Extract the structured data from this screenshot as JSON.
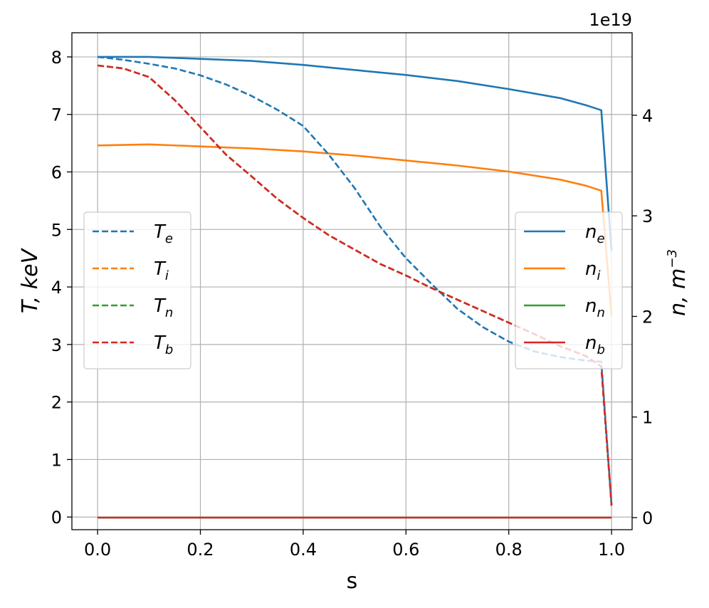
{
  "chart_data": {
    "type": "line",
    "xlabel": "s",
    "ylabel_left": {
      "base": "T, keV"
    },
    "ylabel_right": {
      "base": "n, m",
      "sup": "−3"
    },
    "right_axis_offset": "1e19",
    "xlim": [
      -0.05,
      1.04
    ],
    "ylim_left": [
      -0.22,
      8.42
    ],
    "ylim_right": [
      -0.12,
      4.82
    ],
    "x_ticks": [
      "0.0",
      "0.2",
      "0.4",
      "0.6",
      "0.8",
      "1.0"
    ],
    "x_tick_values": [
      0,
      0.2,
      0.4,
      0.6,
      0.8,
      1.0
    ],
    "y_left_ticks": [
      "0",
      "1",
      "2",
      "3",
      "4",
      "5",
      "6",
      "7",
      "8"
    ],
    "y_left_tick_values": [
      0,
      1,
      2,
      3,
      4,
      5,
      6,
      7,
      8
    ],
    "y_right_ticks": [
      "0",
      "1",
      "2",
      "3",
      "4"
    ],
    "y_right_tick_values": [
      0,
      1,
      2,
      3,
      4
    ],
    "grid": true,
    "legend_left": {
      "placement": "center-left"
    },
    "legend_right": {
      "placement": "center-right"
    },
    "series_left": [
      {
        "name": "T",
        "sub": "e",
        "color": "#1f77b4",
        "dash": true,
        "x": [
          0,
          0.05,
          0.1,
          0.15,
          0.2,
          0.25,
          0.3,
          0.35,
          0.4,
          0.45,
          0.5,
          0.55,
          0.6,
          0.65,
          0.7,
          0.75,
          0.8,
          0.85,
          0.9,
          0.95,
          0.98,
          1.0
        ],
        "y": [
          8.0,
          7.95,
          7.88,
          7.8,
          7.68,
          7.52,
          7.32,
          7.08,
          6.8,
          6.3,
          5.72,
          5.05,
          4.5,
          4.05,
          3.62,
          3.3,
          3.05,
          2.88,
          2.78,
          2.72,
          2.7,
          0.2
        ]
      },
      {
        "name": "T",
        "sub": "i",
        "color": "#ff7f0e",
        "dash": true,
        "x": [
          0,
          0.05,
          0.1,
          0.15,
          0.2,
          0.25,
          0.3,
          0.35,
          0.4,
          0.45,
          0.5,
          0.55,
          0.6,
          0.65,
          0.7,
          0.75,
          0.8,
          0.85,
          0.9,
          0.95,
          0.98,
          1.0
        ],
        "y": [
          7.85,
          7.8,
          7.65,
          7.25,
          6.78,
          6.3,
          5.92,
          5.53,
          5.2,
          4.9,
          4.65,
          4.4,
          4.2,
          3.98,
          3.78,
          3.58,
          3.38,
          3.18,
          2.97,
          2.8,
          2.62,
          0.2
        ]
      },
      {
        "name": "T",
        "sub": "n",
        "color": "#2ca02c",
        "dash": true,
        "x": [
          0,
          0.05,
          0.1,
          0.15,
          0.2,
          0.25,
          0.3,
          0.35,
          0.4,
          0.45,
          0.5,
          0.55,
          0.6,
          0.65,
          0.7,
          0.75,
          0.8,
          0.85,
          0.9,
          0.95,
          0.98,
          1.0
        ],
        "y": [
          7.85,
          7.8,
          7.65,
          7.25,
          6.78,
          6.3,
          5.92,
          5.53,
          5.2,
          4.9,
          4.65,
          4.4,
          4.2,
          3.98,
          3.78,
          3.58,
          3.38,
          3.18,
          2.97,
          2.8,
          2.62,
          0.2
        ]
      },
      {
        "name": "T",
        "sub": "b",
        "color": "#d62728",
        "dash": true,
        "x": [
          0,
          0.05,
          0.1,
          0.15,
          0.2,
          0.25,
          0.3,
          0.35,
          0.4,
          0.45,
          0.5,
          0.55,
          0.6,
          0.65,
          0.7,
          0.75,
          0.8,
          0.85,
          0.9,
          0.95,
          0.98,
          1.0
        ],
        "y": [
          7.85,
          7.8,
          7.65,
          7.25,
          6.78,
          6.3,
          5.92,
          5.53,
          5.2,
          4.9,
          4.65,
          4.4,
          4.2,
          3.98,
          3.78,
          3.58,
          3.38,
          3.18,
          2.97,
          2.8,
          2.62,
          0.2
        ]
      }
    ],
    "series_right": [
      {
        "name": "n",
        "sub": "e",
        "color": "#1f77b4",
        "dash": false,
        "x": [
          0,
          0.1,
          0.2,
          0.3,
          0.4,
          0.5,
          0.6,
          0.7,
          0.8,
          0.9,
          0.95,
          0.98,
          1.0
        ],
        "y": [
          4.58,
          4.58,
          4.56,
          4.54,
          4.5,
          4.45,
          4.4,
          4.34,
          4.26,
          4.17,
          4.1,
          4.05,
          2.65
        ]
      },
      {
        "name": "n",
        "sub": "i",
        "color": "#ff7f0e",
        "dash": false,
        "x": [
          0,
          0.1,
          0.2,
          0.3,
          0.4,
          0.5,
          0.6,
          0.7,
          0.8,
          0.9,
          0.95,
          0.98,
          1.0
        ],
        "y": [
          3.7,
          3.71,
          3.69,
          3.67,
          3.64,
          3.6,
          3.55,
          3.5,
          3.44,
          3.36,
          3.3,
          3.25,
          2.0
        ]
      },
      {
        "name": "n",
        "sub": "n",
        "color": "#2ca02c",
        "dash": false,
        "x": [
          0,
          0.2,
          0.4,
          0.6,
          0.8,
          1.0
        ],
        "y": [
          0,
          0,
          0,
          0,
          0,
          0
        ]
      },
      {
        "name": "n",
        "sub": "b",
        "color": "#d62728",
        "dash": false,
        "x": [
          0,
          0.2,
          0.4,
          0.6,
          0.8,
          1.0
        ],
        "y": [
          0,
          0,
          0,
          0,
          0,
          0
        ]
      }
    ]
  }
}
